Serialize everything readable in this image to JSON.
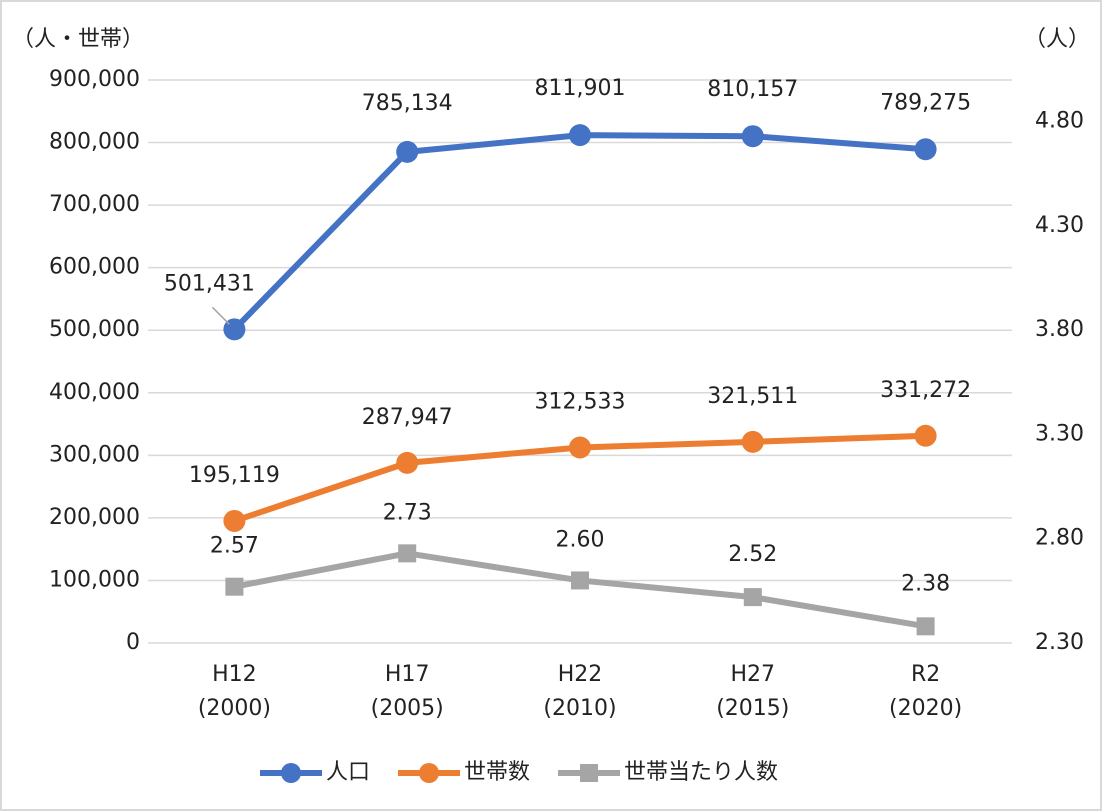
{
  "chart_data": {
    "type": "line",
    "y_axis_label": "（人・世帯）",
    "y2_axis_label": "（人）",
    "categories": [
      "H12 (2000)",
      "H17 (2005)",
      "H22 (2010)",
      "H27 (2015)",
      "R2 (2020)"
    ],
    "series": [
      {
        "name": "人口",
        "color": "#4472c4",
        "marker": "circle",
        "values": [
          501431,
          785134,
          811901,
          810157,
          789275
        ],
        "value_labels": [
          "501,431",
          "785,134",
          "811,901",
          "810,157",
          "789,275"
        ]
      },
      {
        "name": "世帯数",
        "color": "#ed7d31",
        "marker": "circle",
        "values": [
          195119,
          287947,
          312533,
          321511,
          331272
        ],
        "value_labels": [
          "195,119",
          "287,947",
          "312,533",
          "321,511",
          "331,272"
        ]
      },
      {
        "name": "世帯当たり人数",
        "color": "#a5a5a5",
        "marker": "square",
        "axis": "y2",
        "values": [
          2.57,
          2.73,
          2.6,
          2.52,
          2.38
        ],
        "value_labels": [
          "2.57",
          "2.73",
          "2.60",
          "2.52",
          "2.38"
        ]
      }
    ],
    "ylim": [
      0,
      900000
    ],
    "yticks": [
      0,
      {
        "value": 100000,
        "label": "100,000"
      },
      {
        "value": 200000,
        "label": "200,000"
      },
      {
        "value": 300000,
        "label": "300,000"
      },
      {
        "value": 400000,
        "label": "400,000"
      },
      {
        "value": 500000,
        "label": "500,000"
      },
      {
        "value": 600000,
        "label": "600,000"
      },
      {
        "value": 700000,
        "label": "700,000"
      },
      {
        "value": 800000,
        "label": "800,000"
      },
      {
        "value": 900000,
        "label": "900,000"
      }
    ],
    "y2lim": [
      2.3,
      5.0
    ],
    "y2ticks": [
      {
        "value": 2.3,
        "label": "2.30"
      },
      {
        "value": 2.8,
        "label": "2.80"
      },
      {
        "value": 3.3,
        "label": "3.30"
      },
      {
        "value": 3.8,
        "label": "3.80"
      },
      {
        "value": 4.3,
        "label": "4.30"
      },
      {
        "value": 4.8,
        "label": "4.80"
      }
    ],
    "grid": true,
    "legend": "bottom"
  }
}
